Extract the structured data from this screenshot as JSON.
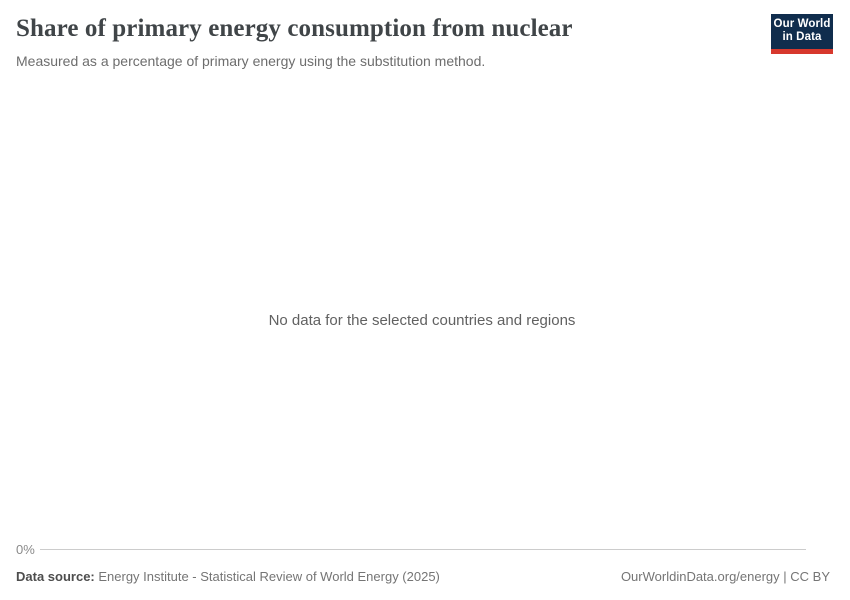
{
  "header": {
    "title": "Share of primary energy consumption from nuclear",
    "subtitle": "Measured as a percentage of primary energy using the substitution method.",
    "logo": {
      "line1": "Our World",
      "line2": "in Data"
    }
  },
  "chart": {
    "no_data_message": "No data for the selected countries and regions",
    "y_axis": {
      "tick_label": "0%"
    }
  },
  "footer": {
    "data_source_label": "Data source:",
    "data_source_value": " Energy Institute - Statistical Review of World Energy (2025)",
    "attribution": "OurWorldinData.org/energy | CC BY"
  },
  "colors": {
    "title_text": "#404548",
    "subtitle_text": "#6d6d6d",
    "no_data_text": "#616161",
    "tick_label_text": "#8a8a8a",
    "axis_line": "#cccccc",
    "footer_text": "#757575",
    "footer_label_text": "#4d4d4d",
    "logo_background": "#102D4D",
    "logo_accent": "#D7382D",
    "logo_text": "#ffffff",
    "page_background": "#ffffff"
  },
  "chart_data": {
    "type": "line",
    "title": "Share of primary energy consumption from nuclear",
    "subtitle": "Measured as a percentage of primary energy using the substitution method.",
    "series": [],
    "categories": [],
    "y_ticks": [
      "0%"
    ],
    "ylim_shown_min": "0%",
    "grid": false,
    "legend": "none",
    "annotations": [
      "No data for the selected countries and regions"
    ]
  }
}
